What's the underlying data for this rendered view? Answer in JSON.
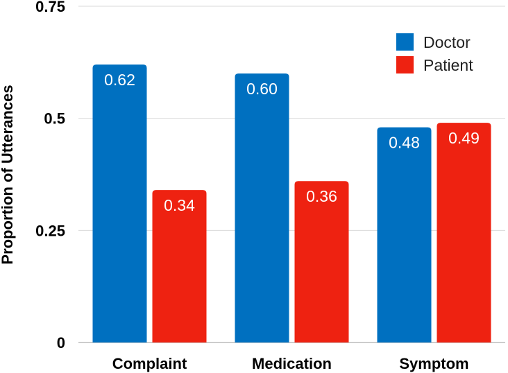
{
  "chart_data": {
    "type": "bar",
    "title": "",
    "xlabel": "",
    "ylabel": "Proportion of Utterances",
    "ylim": [
      0,
      0.75
    ],
    "yticks": [
      0,
      0.25,
      0.5,
      0.75
    ],
    "ytick_labels": [
      "0",
      "0.25",
      "0.5",
      "0.75"
    ],
    "grid": true,
    "legend_position": "top-right",
    "categories": [
      "Complaint",
      "Medication",
      "Symptom"
    ],
    "series": [
      {
        "name": "Doctor",
        "color": "#0070C0",
        "values": [
          0.62,
          0.6,
          0.48
        ],
        "labels": [
          "0.62",
          "0.60",
          "0.48"
        ]
      },
      {
        "name": "Patient",
        "color": "#EE2211",
        "values": [
          0.34,
          0.36,
          0.49
        ],
        "labels": [
          "0.34",
          "0.36",
          "0.49"
        ]
      }
    ]
  }
}
